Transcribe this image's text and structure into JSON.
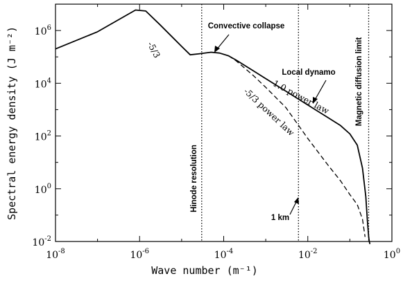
{
  "chart_data": {
    "type": "line",
    "xlabel": "Wave number (m⁻¹)",
    "ylabel": "Spectral energy density (J m⁻²)",
    "xscale": "log",
    "yscale": "log",
    "xlim": [
      1e-08,
      1
    ],
    "ylim": [
      0.01,
      10000000
    ],
    "x_ticks": [
      {
        "base": "10",
        "exp": "-8"
      },
      {
        "base": "10",
        "exp": "-6"
      },
      {
        "base": "10",
        "exp": "-4"
      },
      {
        "base": "10",
        "exp": "-2"
      },
      {
        "base": "10",
        "exp": "0"
      }
    ],
    "y_ticks": [
      {
        "base": "10",
        "exp": "-2"
      },
      {
        "base": "10",
        "exp": "0"
      },
      {
        "base": "10",
        "exp": "2"
      },
      {
        "base": "10",
        "exp": "4"
      },
      {
        "base": "10",
        "exp": "6"
      }
    ],
    "series": [
      {
        "style": "solid",
        "x": [
          1e-08,
          1e-07,
          8e-07,
          1.4e-06,
          3e-06,
          1e-05,
          1.6e-05,
          2.5e-05,
          5e-05,
          8e-05,
          0.00013,
          0.0002,
          0.0005,
          0.001,
          0.003,
          0.01,
          0.03,
          0.06,
          0.1,
          0.15,
          0.2,
          0.24,
          0.26,
          0.28,
          0.29,
          0.3
        ],
        "y": [
          200000,
          900000,
          6000000,
          5500000,
          1700000,
          250000,
          120000,
          130000,
          150000,
          140000,
          110000,
          75000,
          30000,
          15000,
          5000,
          1500,
          500,
          250,
          120,
          45,
          6,
          0.5,
          0.07,
          0.015,
          0.01,
          0.007
        ]
      },
      {
        "style": "dashed",
        "x": [
          0.00013,
          0.0002,
          0.0005,
          0.001,
          0.003,
          0.01,
          0.03,
          0.06,
          0.1,
          0.15,
          0.2,
          0.23
        ],
        "y": [
          110000,
          70000,
          20000,
          7000,
          1200,
          80,
          8,
          2,
          0.6,
          0.25,
          0.07,
          0.015
        ]
      }
    ],
    "vlines": [
      {
        "x": 3e-05,
        "label": "Hinode resolution"
      },
      {
        "x": 0.006,
        "label": ""
      },
      {
        "x": 0.28,
        "label": "Magnetic diffusion limit"
      }
    ],
    "annotations": {
      "slope_peak": "-5/3",
      "convective_collapse": "Convective collapse",
      "local_dynamo": "Local dynamo",
      "power_law_1": "-1.0 power law",
      "power_law_53": "-5/3 power law",
      "one_km": "1 km"
    }
  }
}
